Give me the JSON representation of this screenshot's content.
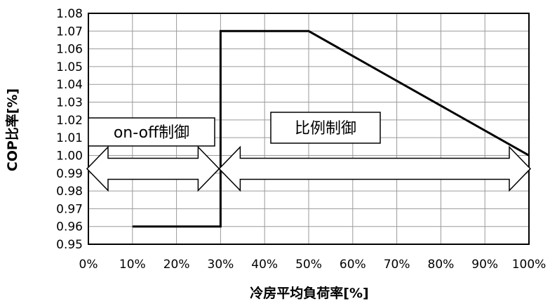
{
  "chart_data": {
    "type": "line",
    "xlabel": "冷房平均負荷率[%]",
    "ylabel": "COP比率[%]",
    "xlim": [
      0,
      100
    ],
    "ylim": [
      0.95,
      1.08
    ],
    "x_tick_labels": [
      "0%",
      "10%",
      "20%",
      "30%",
      "40%",
      "50%",
      "60%",
      "70%",
      "80%",
      "90%",
      "100%"
    ],
    "y_tick_labels": [
      "0.95",
      "0.96",
      "0.97",
      "0.98",
      "0.99",
      "1.00",
      "1.01",
      "1.02",
      "1.03",
      "1.04",
      "1.05",
      "1.06",
      "1.07",
      "1.08"
    ],
    "grid": true,
    "series": [
      {
        "x": [
          10,
          30,
          30,
          50,
          100
        ],
        "y": [
          0.96,
          0.96,
          1.07,
          1.07,
          1.0
        ]
      }
    ],
    "annotations": [
      {
        "text": "on-off制御",
        "x_range": [
          0,
          30
        ]
      },
      {
        "text": "比例制御",
        "x_range": [
          30,
          100
        ]
      }
    ]
  }
}
